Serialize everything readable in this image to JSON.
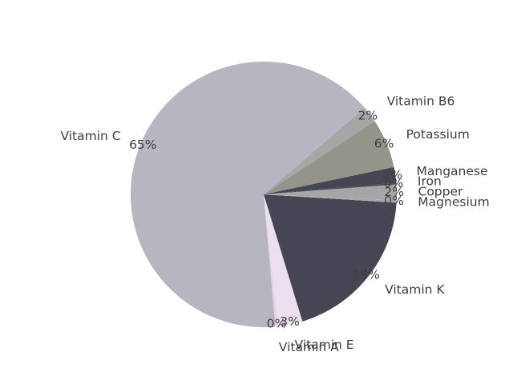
{
  "chart_data": {
    "type": "pie",
    "title": "",
    "start_angle_deg": 33.5,
    "direction": "counterclockwise",
    "slices": [
      {
        "label": "Vitamin B6",
        "percent_label": "2%",
        "value": 2.0,
        "color": "#a6a6a6"
      },
      {
        "label": "Vitamin C",
        "percent_label": "65%",
        "value": 65.1,
        "color": "#b7b5c0"
      },
      {
        "label": "Vitamin A",
        "percent_label": "0%",
        "value": 0.3,
        "color": "#e3d5e6"
      },
      {
        "label": "Vitamin E",
        "percent_label": "3%",
        "value": 3.0,
        "color": "#ecdff0"
      },
      {
        "label": "Vitamin K",
        "percent_label": "19%",
        "value": 19.3,
        "color": "#464553"
      },
      {
        "label": "Magnesium",
        "percent_label": "0%",
        "value": 0.3,
        "color": "#a6a6a6"
      },
      {
        "label": "Copper",
        "percent_label": "2%",
        "value": 1.9,
        "color": "#a6a6a6"
      },
      {
        "label": "Iron",
        "percent_label": "0%",
        "value": 0.2,
        "color": "#464553"
      },
      {
        "label": "Manganese",
        "percent_label": "2%",
        "value": 1.9,
        "color": "#464553"
      },
      {
        "label": "Potassium",
        "percent_label": "6%",
        "value": 6.0,
        "color": "#94948a"
      }
    ]
  }
}
